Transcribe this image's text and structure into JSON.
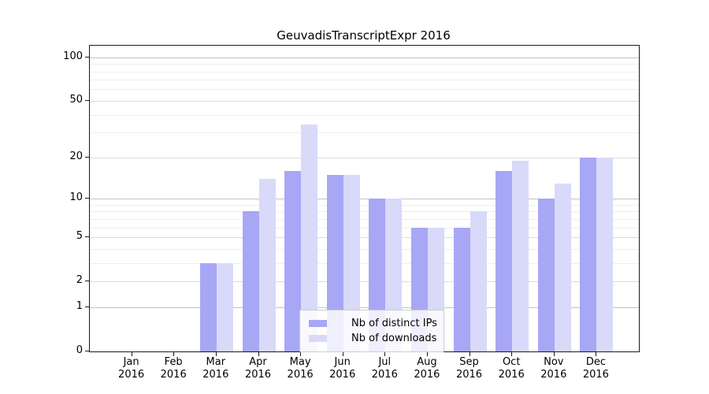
{
  "chart_data": {
    "type": "bar",
    "title": "GeuvadisTranscriptExpr 2016",
    "categories": [
      {
        "month": "Jan",
        "year": "2016"
      },
      {
        "month": "Feb",
        "year": "2016"
      },
      {
        "month": "Mar",
        "year": "2016"
      },
      {
        "month": "Apr",
        "year": "2016"
      },
      {
        "month": "May",
        "year": "2016"
      },
      {
        "month": "Jun",
        "year": "2016"
      },
      {
        "month": "Jul",
        "year": "2016"
      },
      {
        "month": "Aug",
        "year": "2016"
      },
      {
        "month": "Sep",
        "year": "2016"
      },
      {
        "month": "Oct",
        "year": "2016"
      },
      {
        "month": "Nov",
        "year": "2016"
      },
      {
        "month": "Dec",
        "year": "2016"
      }
    ],
    "series": [
      {
        "name": "Nb of distinct IPs",
        "color": "#a7a7f5",
        "values": [
          0,
          0,
          3,
          8,
          16,
          15,
          10,
          6,
          6,
          16,
          10,
          20
        ]
      },
      {
        "name": "Nb of downloads",
        "color": "#d9d9fa",
        "values": [
          0,
          0,
          3,
          14,
          34,
          15,
          10,
          6,
          8,
          19,
          13,
          20
        ]
      }
    ],
    "yscale": "log1p",
    "ylim": [
      0,
      120
    ],
    "yticks": [
      0,
      1,
      2,
      5,
      10,
      20,
      50,
      100
    ],
    "major_gridline_values": [
      1,
      10,
      100
    ],
    "minor_gridline_values": [
      3,
      4,
      6,
      7,
      8,
      9,
      30,
      40,
      60,
      70,
      80,
      90
    ],
    "grid": true,
    "legend_position": "lower-center",
    "xlabel": "",
    "ylabel": ""
  }
}
